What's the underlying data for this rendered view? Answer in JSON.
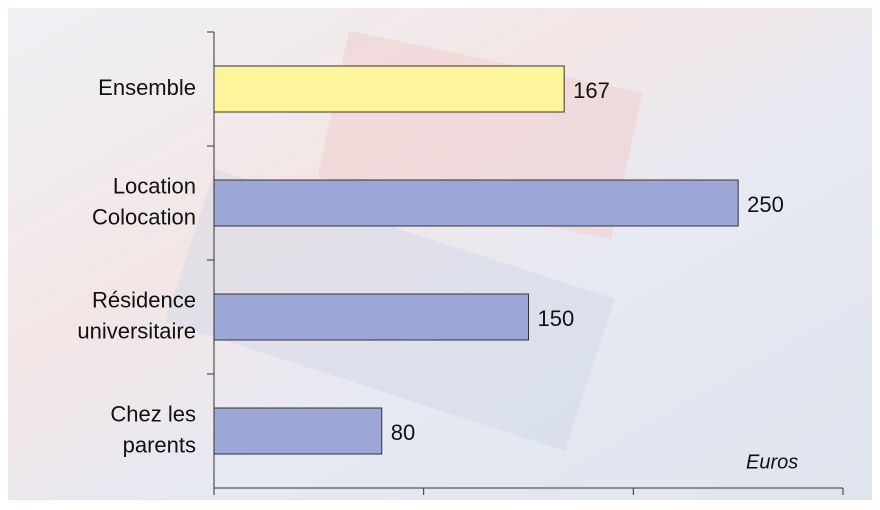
{
  "chart_data": {
    "type": "bar",
    "orientation": "horizontal",
    "categories": [
      [
        "Ensemble"
      ],
      [
        "Location",
        "Colocation"
      ],
      [
        "Résidence",
        "universitaire"
      ],
      [
        "Chez les",
        "parents"
      ]
    ],
    "values": [
      167,
      250,
      150,
      80
    ],
    "colors": [
      "#fdf59b",
      "#9ca7d8",
      "#9ca7d8",
      "#9ca7d8"
    ],
    "xlabel": "Euros",
    "xlim": [
      0,
      300
    ],
    "xticks": [
      0,
      100,
      200,
      300
    ]
  }
}
